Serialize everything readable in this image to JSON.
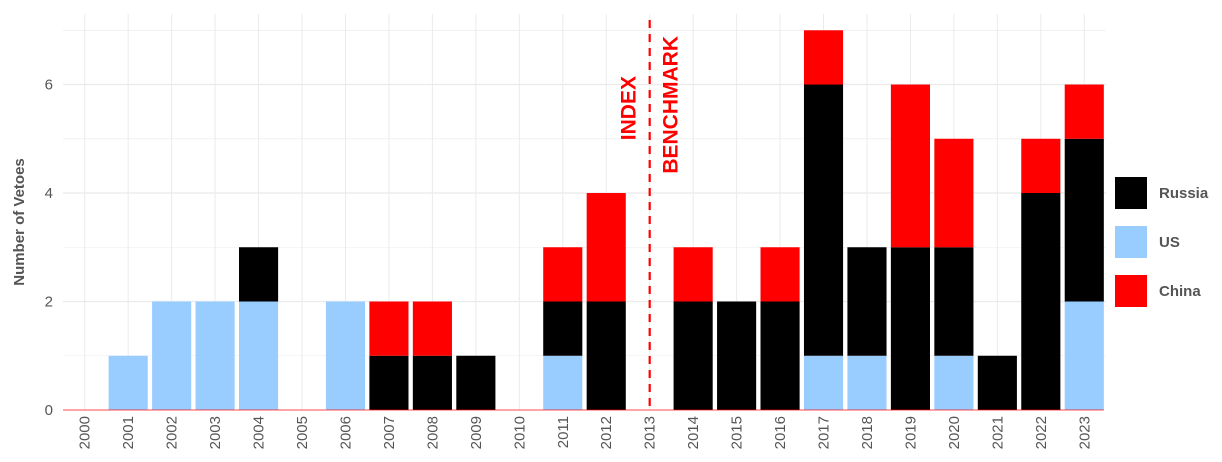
{
  "chart_data": {
    "type": "bar",
    "stacked": true,
    "ylabel": "Number of Vetoes",
    "xlabel": "",
    "ylim": [
      0,
      7.3
    ],
    "yticks": [
      0,
      2,
      4,
      6
    ],
    "grid": true,
    "legend_position": "right",
    "categories": [
      "2000",
      "2001",
      "2002",
      "2003",
      "2004",
      "2005",
      "2006",
      "2007",
      "2008",
      "2009",
      "2010",
      "2011",
      "2012",
      "2013",
      "2014",
      "2015",
      "2016",
      "2017",
      "2018",
      "2019",
      "2020",
      "2021",
      "2022",
      "2023"
    ],
    "series": [
      {
        "name": "US",
        "color": "#99CCFF",
        "values": [
          0,
          1,
          2,
          2,
          2,
          0,
          2,
          0,
          0,
          0,
          0,
          1,
          0,
          0,
          0,
          0,
          0,
          1,
          1,
          0,
          1,
          0,
          0,
          2
        ]
      },
      {
        "name": "Russia",
        "color": "#000000",
        "values": [
          0,
          0,
          0,
          0,
          1,
          0,
          0,
          1,
          1,
          1,
          0,
          1,
          2,
          0,
          2,
          2,
          2,
          5,
          2,
          3,
          2,
          1,
          4,
          3
        ]
      },
      {
        "name": "China",
        "color": "#FF0000",
        "values": [
          0,
          0,
          0,
          0,
          0,
          0,
          0,
          1,
          1,
          0,
          0,
          1,
          2,
          0,
          1,
          0,
          1,
          1,
          0,
          3,
          2,
          0,
          1,
          1
        ]
      }
    ],
    "legend_order": [
      "Russia",
      "US",
      "China"
    ],
    "annotation": {
      "x": "2013",
      "lines": [
        "INDEX",
        "BENCHMARK"
      ],
      "color": "#FF0000",
      "style": "dashed"
    }
  }
}
